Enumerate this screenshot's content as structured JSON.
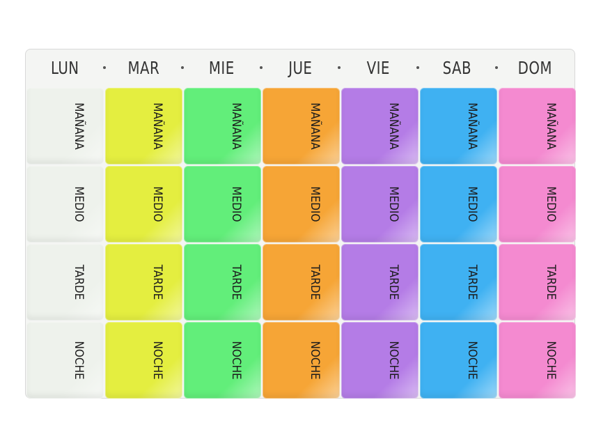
{
  "days": [
    {
      "label": "LUN",
      "color": "#eef2ec"
    },
    {
      "label": "MAR",
      "color": "#e4ee40"
    },
    {
      "label": "MIE",
      "color": "#62ee7a"
    },
    {
      "label": "JUE",
      "color": "#f6a536"
    },
    {
      "label": "VIE",
      "color": "#b47ce6"
    },
    {
      "label": "SAB",
      "color": "#3fb1f2"
    },
    {
      "label": "DOM",
      "color": "#f48ad0"
    }
  ],
  "slots": [
    "MAÑANA",
    "MEDIO",
    "TARDE",
    "NOCHE"
  ]
}
